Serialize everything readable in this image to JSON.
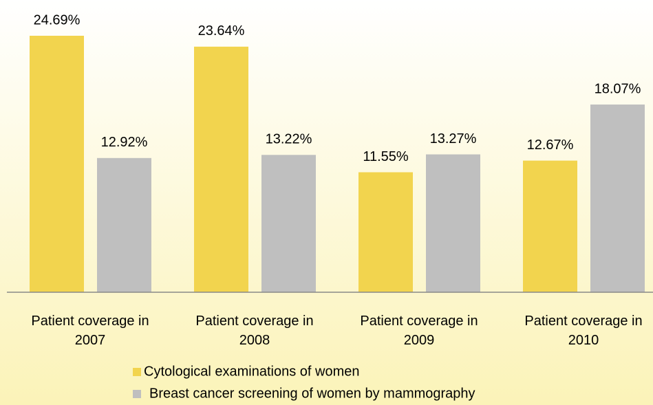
{
  "chart_data": {
    "type": "bar",
    "categories": [
      "Patient coverage in 2007",
      "Patient coverage in 2008",
      "Patient coverage in 2009",
      "Patient coverage in 2010"
    ],
    "series": [
      {
        "name": "Cytological examinations of women",
        "color": "#f2d44e",
        "values": [
          24.69,
          23.64,
          11.55,
          12.67
        ],
        "value_labels": [
          "24.69%",
          "23.64%",
          "11.55%",
          "12.67%"
        ]
      },
      {
        "name": "Breast cancer screening of women by mammography",
        "color": "#bfbfbf",
        "values": [
          12.92,
          13.22,
          13.27,
          18.07
        ],
        "value_labels": [
          "12.92%",
          "13.22%",
          "13.27%",
          "18.07%"
        ]
      }
    ],
    "ylim": [
      0,
      28
    ]
  }
}
